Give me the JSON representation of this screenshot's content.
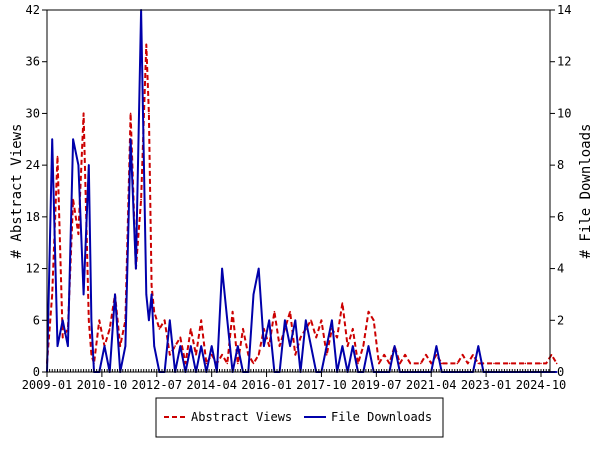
{
  "chart_data": {
    "type": "line",
    "title": "",
    "ylabel": "# Abstract Views",
    "y2label": "# File Downloads",
    "ylim": [
      0,
      42
    ],
    "y2lim": [
      0,
      14
    ],
    "yticks": [
      0,
      6,
      12,
      18,
      24,
      30,
      36,
      42
    ],
    "y2ticks": [
      0,
      2,
      4,
      6,
      8,
      10,
      12,
      14
    ],
    "xticks": [
      "2009-01",
      "2010-10",
      "2012-07",
      "2014-04",
      "2016-01",
      "2017-10",
      "2019-07",
      "2021-04",
      "2023-01",
      "2024-10"
    ],
    "grid": false,
    "legend_position": "bottom",
    "colors": {
      "abstract_views": "#cc0000",
      "file_downloads": "#0000aa"
    },
    "series": [
      {
        "name": "Abstract Views",
        "axis": "left",
        "style": "dashed",
        "x": [
          "2009-01",
          "2009-03",
          "2009-05",
          "2009-07",
          "2009-09",
          "2009-11",
          "2010-01",
          "2010-03",
          "2010-05",
          "2010-06",
          "2010-07",
          "2010-09",
          "2010-11",
          "2011-01",
          "2011-03",
          "2011-05",
          "2011-07",
          "2011-09",
          "2011-11",
          "2012-01",
          "2012-03",
          "2012-04",
          "2012-05",
          "2012-06",
          "2012-08",
          "2012-10",
          "2012-12",
          "2013-02",
          "2013-04",
          "2013-06",
          "2013-08",
          "2013-10",
          "2013-12",
          "2014-02",
          "2014-04",
          "2014-06",
          "2014-08",
          "2014-10",
          "2014-12",
          "2015-02",
          "2015-04",
          "2015-06",
          "2015-08",
          "2015-10",
          "2015-12",
          "2016-02",
          "2016-04",
          "2016-06",
          "2016-08",
          "2016-10",
          "2016-12",
          "2017-02",
          "2017-04",
          "2017-06",
          "2017-08",
          "2017-10",
          "2017-12",
          "2018-02",
          "2018-04",
          "2018-06",
          "2018-08",
          "2018-10",
          "2018-12",
          "2019-02",
          "2019-04",
          "2019-06",
          "2019-08",
          "2019-10",
          "2019-12",
          "2020-02",
          "2020-04",
          "2020-06",
          "2020-08",
          "2020-10",
          "2020-12",
          "2021-02",
          "2021-04",
          "2021-06",
          "2021-08",
          "2021-10",
          "2021-12",
          "2022-02",
          "2022-04",
          "2022-06",
          "2022-08",
          "2022-10",
          "2022-12",
          "2023-02",
          "2023-04",
          "2023-06",
          "2023-08",
          "2023-10",
          "2023-12",
          "2024-02",
          "2024-04",
          "2024-06",
          "2024-08",
          "2024-10",
          "2024-12",
          "2025-02",
          "2025-04"
        ],
        "values": [
          1,
          9,
          25,
          4,
          5,
          20,
          16,
          30,
          6,
          2,
          1,
          6,
          3,
          5,
          9,
          3,
          6,
          30,
          12,
          20,
          38,
          30,
          10,
          7,
          5,
          6,
          2,
          3,
          4,
          1,
          5,
          2,
          6,
          1,
          2,
          1,
          2,
          1,
          7,
          1,
          5,
          2,
          1,
          2,
          5,
          3,
          7,
          3,
          5,
          7,
          2,
          4,
          5,
          6,
          4,
          6,
          2,
          5,
          4,
          8,
          3,
          5,
          1,
          3,
          7,
          6,
          1,
          2,
          1,
          3,
          1,
          2,
          1,
          1,
          1,
          2,
          1,
          2,
          1,
          1,
          1,
          1,
          2,
          1,
          2,
          1,
          1,
          1,
          1,
          1,
          1,
          1,
          1,
          1,
          1,
          1,
          1,
          1,
          1,
          2,
          1
        ]
      },
      {
        "name": "File Downloads",
        "axis": "right",
        "style": "solid",
        "x": [
          "2009-01",
          "2009-03",
          "2009-05",
          "2009-07",
          "2009-09",
          "2009-11",
          "2010-01",
          "2010-03",
          "2010-05",
          "2010-06",
          "2010-07",
          "2010-09",
          "2010-11",
          "2011-01",
          "2011-03",
          "2011-05",
          "2011-07",
          "2011-09",
          "2011-11",
          "2012-01",
          "2012-03",
          "2012-04",
          "2012-05",
          "2012-06",
          "2012-08",
          "2012-10",
          "2012-12",
          "2013-02",
          "2013-04",
          "2013-06",
          "2013-08",
          "2013-10",
          "2013-12",
          "2014-02",
          "2014-04",
          "2014-06",
          "2014-08",
          "2014-10",
          "2014-12",
          "2015-02",
          "2015-04",
          "2015-06",
          "2015-08",
          "2015-10",
          "2015-12",
          "2016-02",
          "2016-04",
          "2016-06",
          "2016-08",
          "2016-10",
          "2016-12",
          "2017-02",
          "2017-04",
          "2017-06",
          "2017-08",
          "2017-10",
          "2017-12",
          "2018-02",
          "2018-04",
          "2018-06",
          "2018-08",
          "2018-10",
          "2018-12",
          "2019-02",
          "2019-04",
          "2019-06",
          "2019-08",
          "2019-10",
          "2019-12",
          "2020-02",
          "2020-04",
          "2020-06",
          "2020-08",
          "2020-10",
          "2020-12",
          "2021-02",
          "2021-04",
          "2021-06",
          "2021-08",
          "2021-10",
          "2021-12",
          "2022-02",
          "2022-04",
          "2022-06",
          "2022-08",
          "2022-10",
          "2022-12",
          "2023-02",
          "2023-04",
          "2023-06",
          "2023-08",
          "2023-10",
          "2023-12",
          "2024-02",
          "2024-04",
          "2024-06",
          "2024-08",
          "2024-10",
          "2024-12",
          "2025-02",
          "2025-04"
        ],
        "values": [
          0,
          9,
          1,
          2,
          1,
          9,
          8,
          3,
          8,
          2,
          0,
          0,
          1,
          0,
          3,
          0,
          1,
          9,
          4,
          14,
          3,
          2,
          3,
          1,
          0,
          0,
          2,
          0,
          1,
          0,
          1,
          0,
          1,
          0,
          1,
          0,
          4,
          2,
          0,
          1,
          0,
          0,
          3,
          4,
          1,
          2,
          0,
          0,
          2,
          1,
          2,
          0,
          2,
          1,
          0,
          0,
          1,
          2,
          0,
          1,
          0,
          1,
          0,
          0,
          1,
          0,
          0,
          0,
          0,
          1,
          0,
          0,
          0,
          0,
          0,
          0,
          0,
          1,
          0,
          0,
          0,
          0,
          0,
          0,
          0,
          1,
          0,
          0,
          0,
          0,
          0,
          0,
          0,
          0,
          0,
          0,
          0,
          0,
          0,
          0,
          0
        ]
      }
    ]
  }
}
